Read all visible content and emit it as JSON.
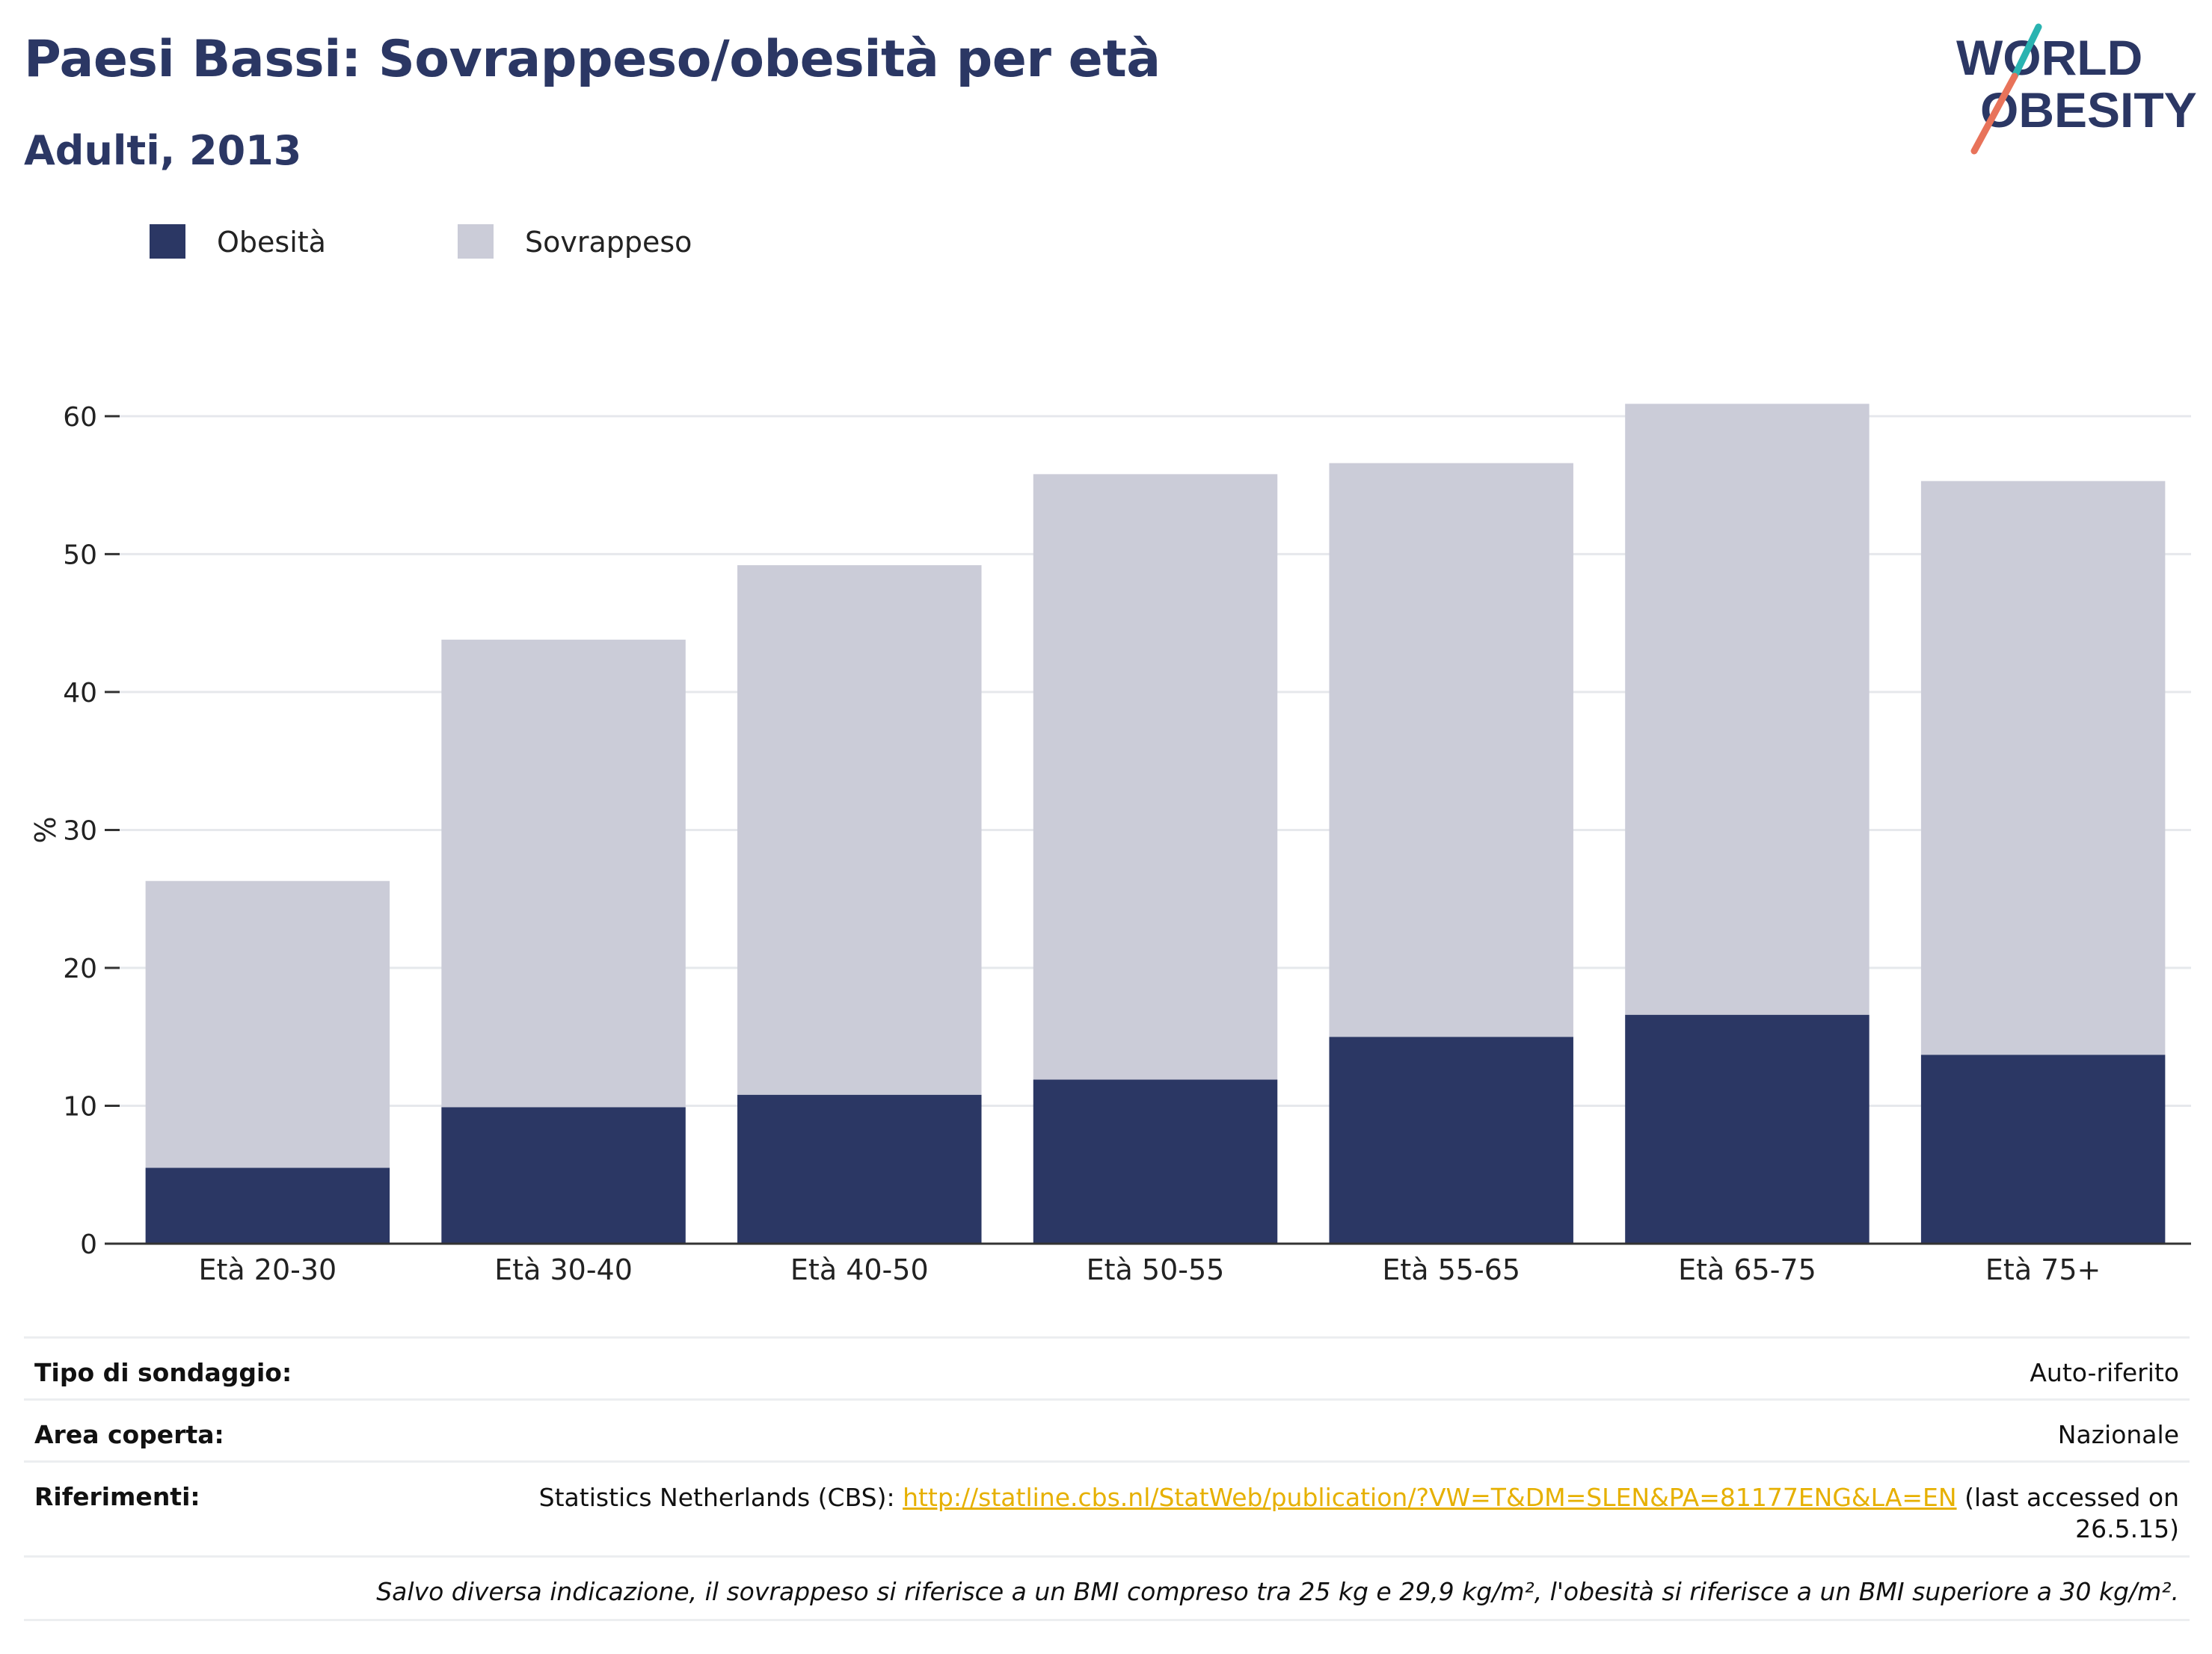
{
  "header": {
    "title": "Paesi Bassi: Sovrappeso/obesità per età",
    "subtitle": "Adulti, 2013"
  },
  "logo": {
    "line1": "WORLD",
    "line2": "OBESITY",
    "name": "world-obesity-logo"
  },
  "colors": {
    "obesity": "#2b3764",
    "overweight": "#cbccd8",
    "title": "#2b3764",
    "link": "#e6b000"
  },
  "legend": [
    {
      "label": "Obesità",
      "color": "#2b3764"
    },
    {
      "label": "Sovrappeso",
      "color": "#cbccd8"
    }
  ],
  "chart_data": {
    "type": "bar",
    "stacked": true,
    "categories": [
      "Età 20-30",
      "Età 30-40",
      "Età 40-50",
      "Età 50-55",
      "Età 55-65",
      "Età 65-75",
      "Età 75+"
    ],
    "series": [
      {
        "name": "Obesità",
        "values": [
          5.5,
          9.9,
          10.8,
          11.9,
          15.0,
          16.6,
          13.7
        ]
      },
      {
        "name": "Sovrappeso",
        "values": [
          20.8,
          33.9,
          38.4,
          43.9,
          41.6,
          44.3,
          41.6
        ]
      }
    ],
    "ylabel": "%",
    "xlabel": "",
    "ylim": [
      0,
      62
    ],
    "yticks": [
      0,
      10,
      20,
      30,
      40,
      50,
      60
    ],
    "grid": true,
    "legend_position": "top-left"
  },
  "info": {
    "survey_label": "Tipo di sondaggio:",
    "survey_value": "Auto-riferito",
    "area_label": "Area coperta:",
    "area_value": "Nazionale",
    "refs_label": "Riferimenti:",
    "refs_prefix": "Statistics Netherlands (CBS): ",
    "refs_link": "http://statline.cbs.nl/StatWeb/publication/?VW=T&DM=SLEN&PA=81177ENG&LA=EN",
    "refs_suffix": " (last accessed on",
    "refs_date": "26.5.15)",
    "note": "Salvo diversa indicazione, il sovrappeso si riferisce a un BMI compreso tra 25 kg e 29,9 kg/m², l'obesità si riferisce a un BMI superiore a 30 kg/m²."
  }
}
